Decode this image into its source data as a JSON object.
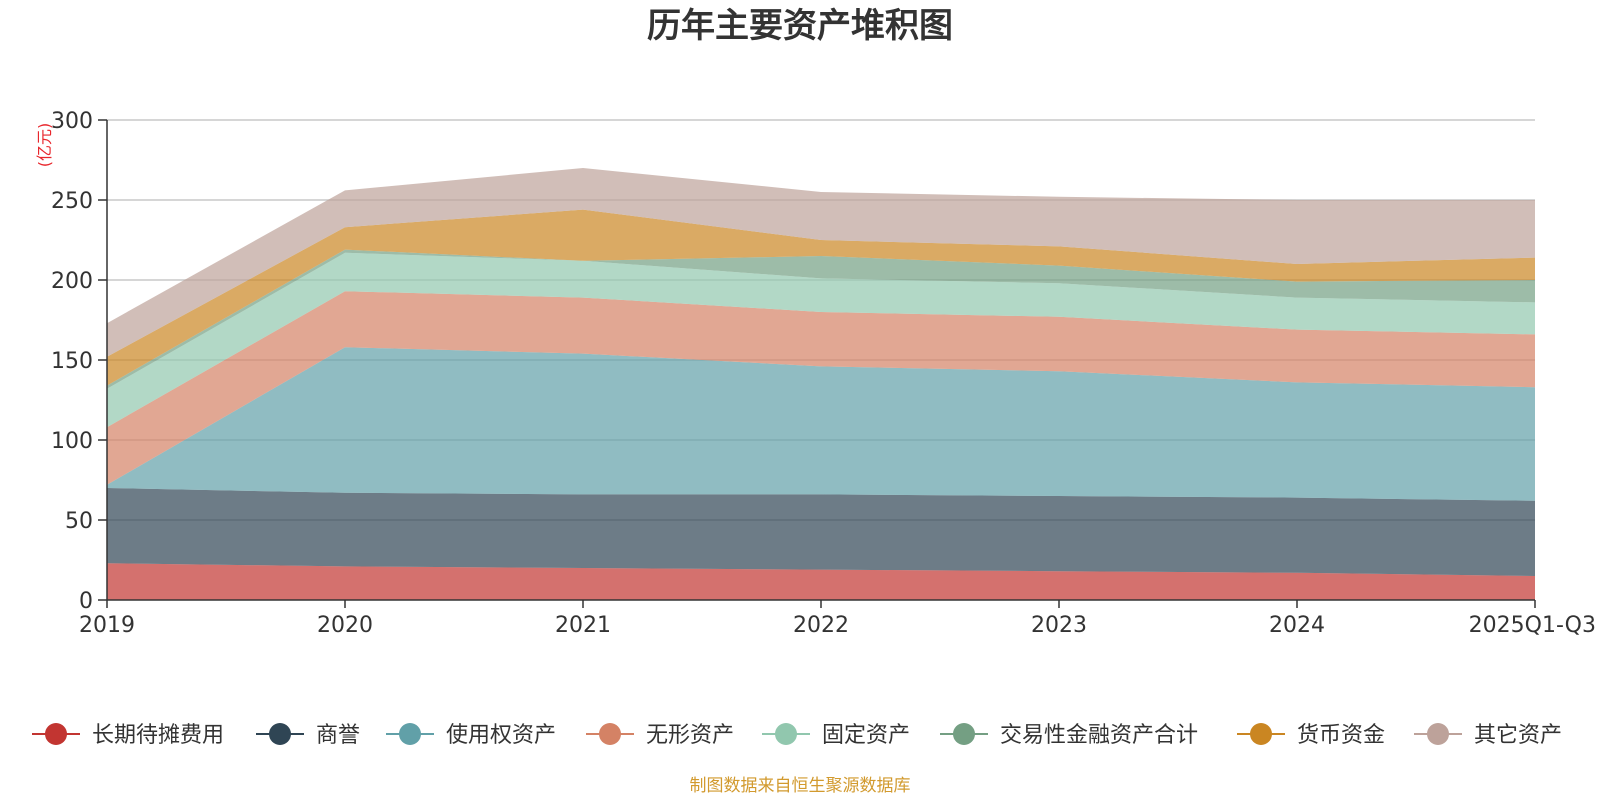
{
  "chart_data": {
    "type": "area",
    "stacked": true,
    "title": "历年主要资产堆积图",
    "ylabel": "(亿元)",
    "xlabel": "",
    "categories": [
      "2019",
      "2020",
      "2021",
      "2022",
      "2023",
      "2024",
      "2025Q1-Q3"
    ],
    "ylim": [
      0,
      300
    ],
    "yticks": [
      0,
      50,
      100,
      150,
      200,
      250,
      300
    ],
    "grid": true,
    "legend_position": "bottom",
    "series": [
      {
        "name": "长期待摊费用",
        "color": "#c23531",
        "values": [
          23,
          21,
          20,
          19,
          18,
          17,
          15
        ]
      },
      {
        "name": "商誉",
        "color": "#2f4554",
        "values": [
          47,
          46,
          46,
          47,
          47,
          47,
          47
        ]
      },
      {
        "name": "使用权资产",
        "color": "#61a0a8",
        "values": [
          2,
          91,
          88,
          80,
          78,
          72,
          71
        ]
      },
      {
        "name": "无形资产",
        "color": "#d48265",
        "values": [
          36,
          35,
          35,
          34,
          34,
          33,
          33
        ]
      },
      {
        "name": "固定资产",
        "color": "#91c7ae",
        "values": [
          24,
          24,
          23,
          21,
          21,
          20,
          20
        ]
      },
      {
        "name": "交易性金融资产合计",
        "color": "#749f83",
        "values": [
          2,
          2,
          0,
          14,
          11,
          10,
          14
        ]
      },
      {
        "name": "货币资金",
        "color": "#ca8622",
        "values": [
          18,
          14,
          32,
          10,
          12,
          11,
          14
        ]
      },
      {
        "name": "其它资产",
        "color": "#bda29a",
        "values": [
          21,
          23,
          26,
          30,
          31,
          40,
          36
        ]
      }
    ]
  },
  "footer": {
    "source_text": "制图数据来自恒生聚源数据库"
  }
}
